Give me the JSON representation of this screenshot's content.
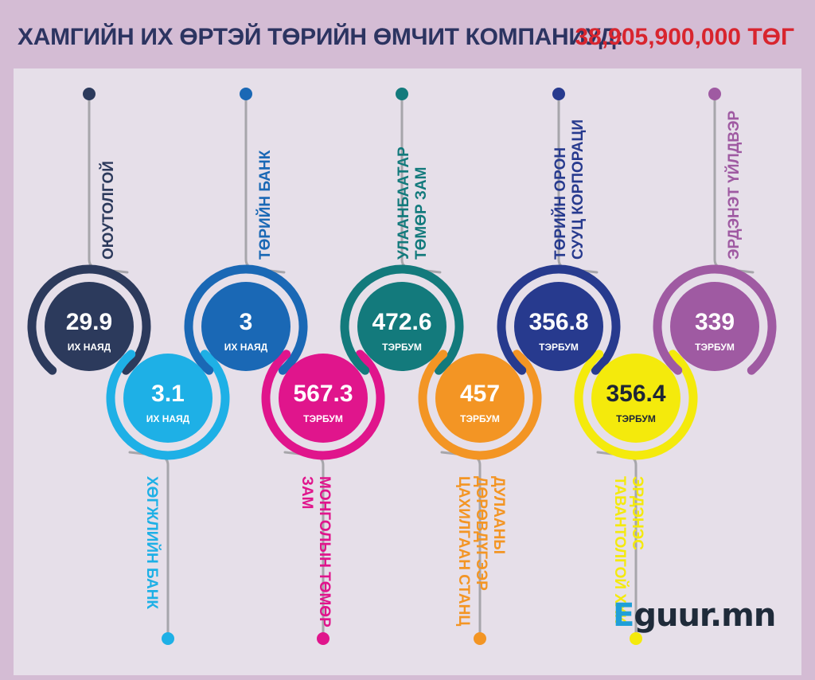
{
  "header": {
    "title": "ХАМГИЙН ИХ ӨРТЭЙ ТӨРИЙН ӨМЧИТ КОМПАНИУД:",
    "total": "38,905,900,000 ТӨГ"
  },
  "logo": {
    "text": "Eguur.mn",
    "prefix": "E",
    "rest": "guur.mn"
  },
  "colors": {
    "header_bg": "#d4bcd4",
    "panel_bg": "#e6dfe9",
    "line": "#a7a6ab"
  },
  "companies": [
    {
      "id": "oyu-tolgoi",
      "value": "29.9",
      "unit": "ИХ НАЯД",
      "label": [
        "ОЮУТОЛГОЙ"
      ],
      "color": "#2c3a5c",
      "position": "top"
    },
    {
      "id": "development-bank",
      "value": "3.1",
      "unit": "ИХ НАЯД",
      "label": [
        "ХӨГЖЛИЙН БАНК"
      ],
      "color": "#1eb0e6",
      "position": "bottom"
    },
    {
      "id": "state-bank",
      "value": "3",
      "unit": "ИХ НАЯД",
      "label": [
        "ТӨРИЙН БАНК"
      ],
      "color": "#1a68b5",
      "position": "top"
    },
    {
      "id": "mongolian-railway",
      "value": "567.3",
      "unit": "ТЭРБУМ",
      "label": [
        "МОНГОЛЫН ТӨМӨР",
        "ЗАМ"
      ],
      "color": "#e0158c",
      "position": "bottom"
    },
    {
      "id": "ulaanbaatar-railway",
      "value": "472.6",
      "unit": "ТЭРБУМ",
      "label": [
        "УЛААНБААТАР",
        "ТӨМӨР ЗАМ"
      ],
      "color": "#137a7c",
      "position": "top"
    },
    {
      "id": "power-plant-4",
      "value": "457",
      "unit": "ТЭРБУМ",
      "label": [
        "ДУЛААНЫ",
        "ДӨРӨВДҮГЭЭР",
        "ЦАХИЛГААН СТАНЦ"
      ],
      "color": "#f39524",
      "position": "bottom"
    },
    {
      "id": "housing-corp",
      "value": "356.8",
      "unit": "ТЭРБУМ",
      "label": [
        "ТӨРИЙН ОРОН",
        "СУУЦ КОРПОРАЦИ"
      ],
      "color": "#273a8e",
      "position": "top"
    },
    {
      "id": "erdenes-tavantolgoi",
      "value": "356.4",
      "unit": "ТЭРБУМ",
      "label": [
        "ЭРДЭНЭС",
        "ТАВАНТОЛГОЙ ХХК"
      ],
      "color": "#f4ea0c",
      "position": "bottom",
      "dark_text": true
    },
    {
      "id": "erdenet-factory",
      "value": "339",
      "unit": "ТЭРБУМ",
      "label": [
        "ЭРДЭНЭТ ҮЙЛДВЭР"
      ],
      "color": "#9f5aa2",
      "position": "top"
    }
  ]
}
